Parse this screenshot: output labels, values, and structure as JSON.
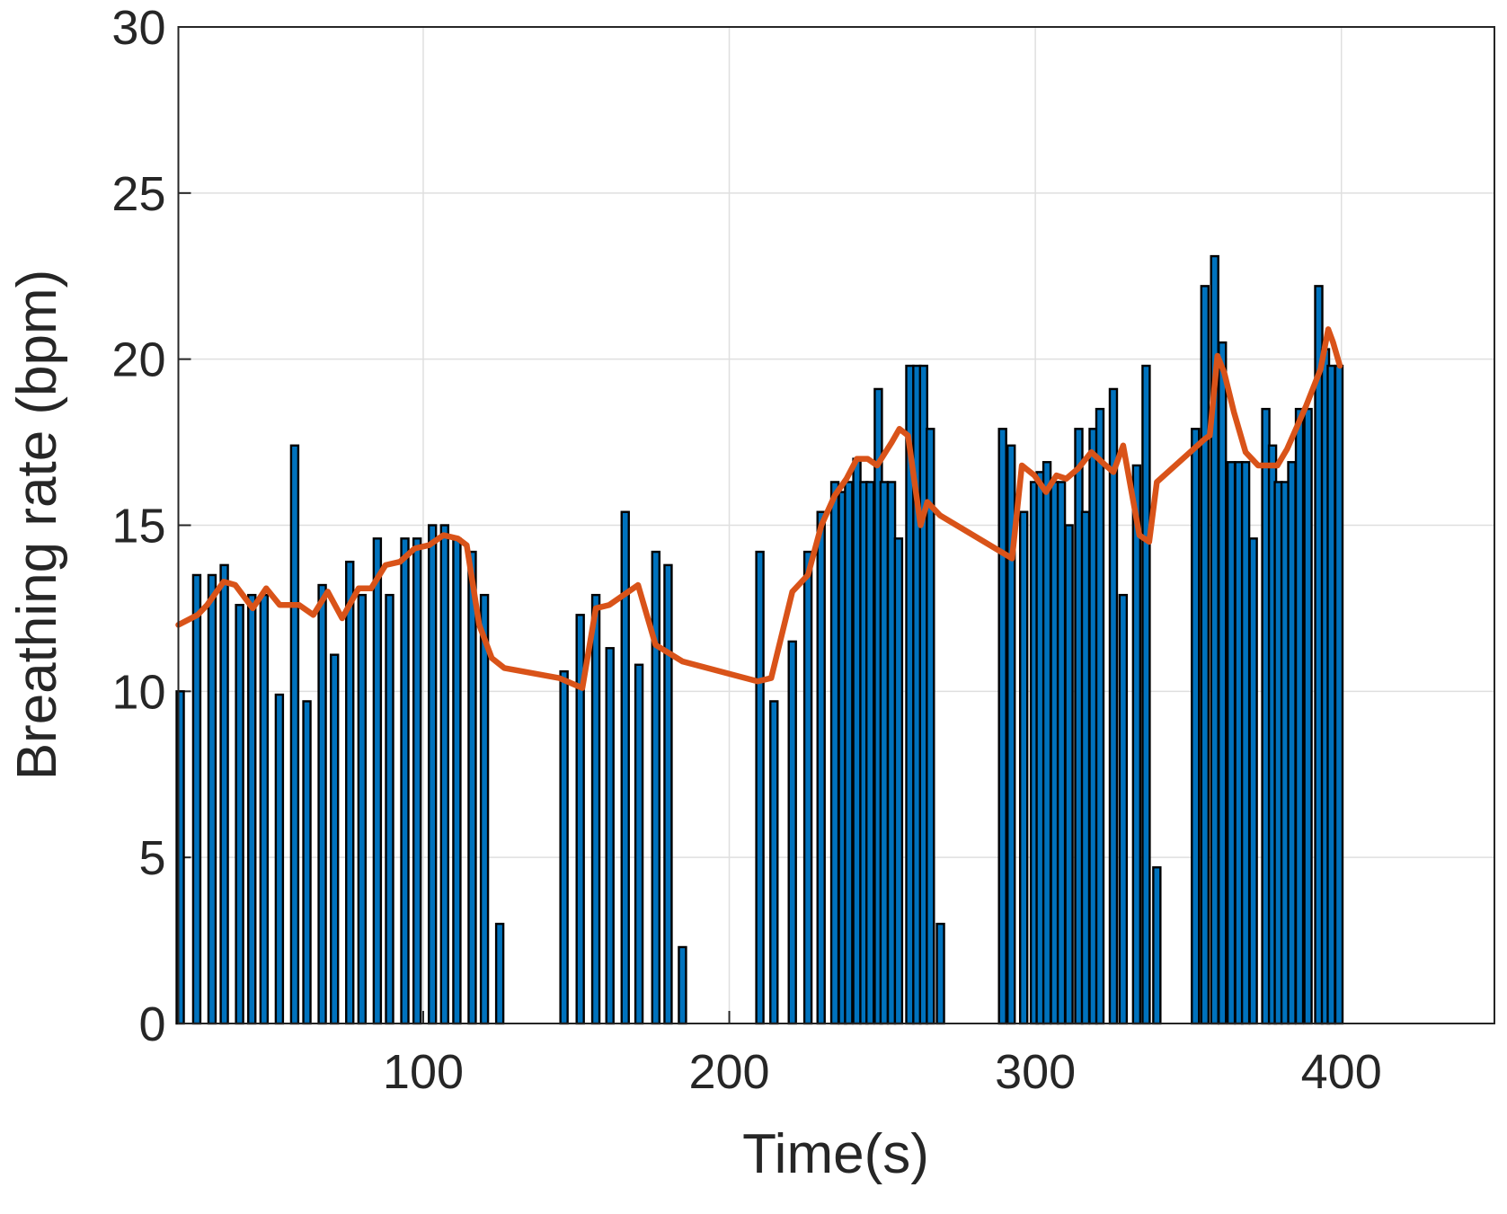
{
  "chart_data": {
    "type": "bar",
    "xlabel": "Time(s)",
    "ylabel": "Breathing rate (bpm)",
    "xlim": [
      20,
      450
    ],
    "ylim": [
      0,
      30
    ],
    "xticks": [
      100,
      200,
      300,
      400
    ],
    "yticks": [
      0,
      5,
      10,
      15,
      20,
      25,
      30
    ],
    "grid": true,
    "series": [
      {
        "type": "bar",
        "color": "#0072bd",
        "edgecolor": "#000000",
        "x": [
          20.6,
          26,
          31,
          35,
          40,
          44,
          48,
          53,
          58,
          62,
          67,
          71,
          76,
          80,
          85,
          89,
          94,
          98,
          103,
          107,
          111,
          116,
          120,
          125,
          146,
          151.3,
          156.4,
          161,
          166,
          170.5,
          176,
          180,
          184.7,
          210,
          214.6,
          220.6,
          225.7,
          230,
          234.5,
          237,
          239,
          241.7,
          244,
          246,
          248.7,
          250.6,
          253,
          255.3,
          259,
          261.3,
          263.5,
          265.7,
          269,
          289.3,
          292.1,
          296.2,
          299.7,
          301.6,
          303.8,
          306.3,
          308.5,
          311,
          314.2,
          316.4,
          318.9,
          321.1,
          325.5,
          328.7,
          333.1,
          336.2,
          339.7,
          352.3,
          355.4,
          358.6,
          361.1,
          364,
          366.5,
          368.7,
          371.2,
          375.3,
          377.5,
          379.4,
          381.6,
          383.8,
          386.3,
          389.1,
          392.6,
          394.8,
          396.7,
          399.2
        ],
        "values": [
          10.0,
          13.5,
          13.5,
          13.8,
          12.6,
          12.9,
          12.9,
          9.9,
          17.4,
          9.7,
          13.2,
          11.1,
          13.9,
          12.9,
          14.6,
          12.9,
          14.6,
          14.6,
          15.0,
          15.0,
          14.6,
          14.2,
          12.9,
          3.0,
          10.6,
          12.3,
          12.9,
          11.3,
          15.4,
          10.8,
          14.2,
          13.8,
          2.3,
          14.2,
          9.7,
          11.5,
          14.2,
          15.4,
          16.3,
          16.0,
          16.3,
          17.0,
          16.3,
          16.3,
          19.1,
          16.3,
          16.3,
          14.6,
          19.8,
          19.8,
          19.8,
          17.9,
          3.0,
          17.9,
          17.4,
          15.4,
          16.3,
          16.6,
          16.9,
          16.3,
          16.3,
          15.0,
          17.9,
          15.4,
          17.9,
          18.5,
          19.1,
          12.9,
          16.8,
          19.8,
          4.7,
          17.9,
          22.2,
          23.1,
          20.5,
          16.9,
          16.9,
          16.9,
          14.6,
          18.5,
          17.4,
          16.3,
          16.3,
          16.9,
          18.5,
          18.5,
          22.2,
          20.3,
          19.8,
          19.8
        ]
      },
      {
        "type": "line",
        "color": "#d95319",
        "x": [
          20.0,
          26.3,
          29.4,
          34.8,
          38.6,
          44.3,
          48.7,
          53.1,
          59.4,
          64.1,
          68.8,
          73.5,
          78.9,
          83.0,
          87.7,
          92.4,
          97.2,
          101.9,
          106.6,
          111.3,
          114.2,
          118.3,
          122.4,
          126.5,
          144.4,
          152.0,
          156.4,
          160.8,
          170.2,
          175.9,
          184.7,
          209.3,
          213.7,
          220.6,
          225.7,
          230.1,
          234.5,
          238.3,
          241.7,
          245.2,
          248.3,
          253.1,
          255.6,
          258.4,
          262.5,
          264.7,
          268.8,
          292.4,
          295.6,
          299.7,
          303.5,
          306.9,
          310.1,
          313.9,
          318.3,
          323.0,
          325.5,
          328.7,
          334.0,
          337.2,
          339.7,
          355.4,
          357.0,
          359.5,
          361.7,
          364.9,
          368.7,
          372.8,
          379.1,
          382.3,
          388.5,
          393.2,
          395.7,
          397.3,
          399.5
        ],
        "values": [
          12.0,
          12.3,
          12.6,
          13.3,
          13.2,
          12.5,
          13.1,
          12.6,
          12.6,
          12.3,
          13.0,
          12.2,
          13.1,
          13.1,
          13.8,
          13.9,
          14.3,
          14.4,
          14.7,
          14.6,
          14.4,
          12.0,
          11.0,
          10.7,
          10.4,
          10.1,
          12.5,
          12.6,
          13.2,
          11.4,
          10.9,
          10.3,
          10.4,
          13.0,
          13.5,
          15.0,
          15.9,
          16.4,
          17.0,
          17.0,
          16.8,
          17.5,
          17.9,
          17.7,
          15.0,
          15.7,
          15.3,
          14.0,
          16.8,
          16.5,
          16.0,
          16.5,
          16.4,
          16.7,
          17.2,
          16.8,
          16.6,
          17.4,
          14.7,
          14.5,
          16.3,
          17.6,
          17.7,
          20.1,
          19.6,
          18.4,
          17.2,
          16.8,
          16.8,
          17.3,
          18.6,
          19.7,
          20.9,
          20.5,
          19.8
        ]
      }
    ]
  }
}
